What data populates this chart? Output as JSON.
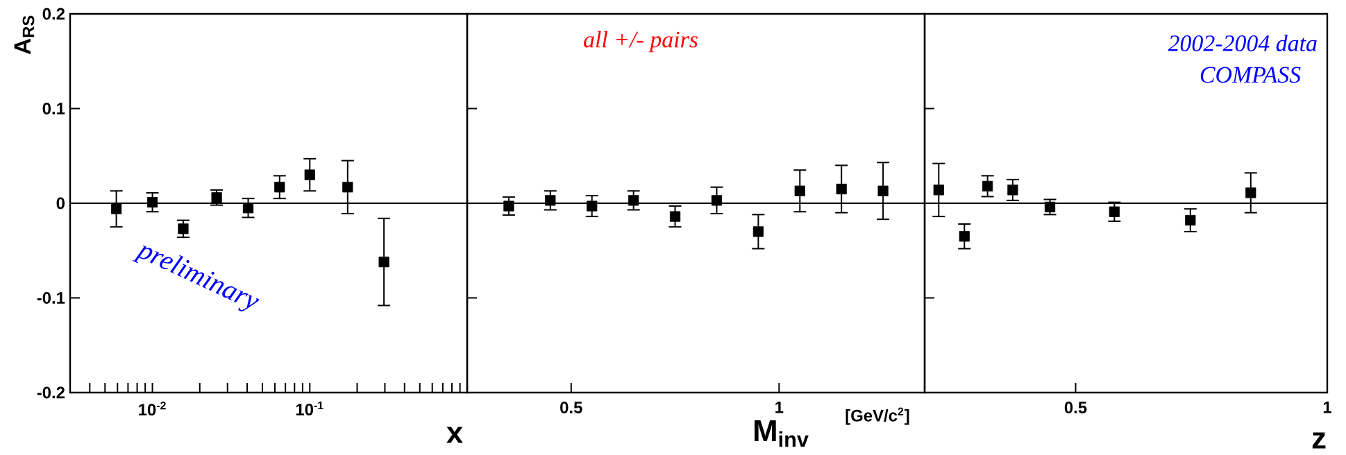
{
  "chart_data": [
    {
      "type": "scatter",
      "ylabel": "A$_{RS}$",
      "xlabel": "x",
      "log": "x",
      "marker": "square",
      "xlim": [
        0.003,
        1
      ],
      "ylim": [
        -0.2,
        0.2
      ],
      "xticks": [
        {
          "value": 0.004,
          "label": null
        },
        {
          "value": 0.005,
          "label": null
        },
        {
          "value": 0.006,
          "label": null
        },
        {
          "value": 0.007,
          "label": null
        },
        {
          "value": 0.008,
          "label": null
        },
        {
          "value": 0.009,
          "label": null
        },
        {
          "value": 0.01,
          "label": "10$^{-2}$"
        },
        {
          "value": 0.02,
          "label": null
        },
        {
          "value": 0.03,
          "label": null
        },
        {
          "value": 0.04,
          "label": null
        },
        {
          "value": 0.05,
          "label": null
        },
        {
          "value": 0.06,
          "label": null
        },
        {
          "value": 0.07,
          "label": null
        },
        {
          "value": 0.08,
          "label": null
        },
        {
          "value": 0.09,
          "label": null
        },
        {
          "value": 0.1,
          "label": "10$^{-1}$"
        },
        {
          "value": 0.2,
          "label": null
        },
        {
          "value": 0.3,
          "label": null
        },
        {
          "value": 0.4,
          "label": null
        },
        {
          "value": 0.5,
          "label": null
        },
        {
          "value": 0.6,
          "label": null
        },
        {
          "value": 0.7,
          "label": null
        },
        {
          "value": 0.8,
          "label": null
        },
        {
          "value": 0.9,
          "label": null
        }
      ],
      "yticks": [
        -0.2,
        -0.1,
        0,
        0.1,
        0.2
      ],
      "x": [
        0.0059,
        0.01,
        0.0157,
        0.0256,
        0.0406,
        0.0643,
        0.1,
        0.174,
        0.296
      ],
      "series": [
        {
          "color": "#000000",
          "values": [
            -0.006,
            0.001,
            -0.027,
            0.006,
            -0.005,
            0.017,
            0.03,
            0.017,
            -0.062
          ],
          "errors": [
            0.019,
            0.01,
            0.009,
            0.008,
            0.01,
            0.012,
            0.017,
            0.028,
            0.046
          ]
        }
      ],
      "ref_lines": [
        {
          "axis": "y",
          "value": 0
        }
      ],
      "annotations": [
        "preliminary"
      ]
    },
    {
      "type": "scatter",
      "xlabel": "M$_{inv}$",
      "marker": "square",
      "tick_labels": "x",
      "xlim": [
        0.25,
        1.35
      ],
      "ylim": [
        -0.2,
        0.2
      ],
      "xticks": [
        0.5,
        1
      ],
      "yticks": [
        -0.2,
        -0.1,
        0,
        0.1,
        0.2
      ],
      "x": [
        0.35,
        0.45,
        0.55,
        0.65,
        0.75,
        0.85,
        0.95,
        1.05,
        1.15,
        1.25
      ],
      "series": [
        {
          "color": "#000000",
          "values": [
            -0.003,
            0.003,
            -0.003,
            0.003,
            -0.014,
            0.003,
            -0.03,
            0.013,
            0.015,
            0.013
          ],
          "errors": [
            0.0095,
            0.01,
            0.011,
            0.01,
            0.011,
            0.014,
            0.018,
            0.022,
            0.025,
            0.03
          ]
        }
      ],
      "ref_lines": [
        {
          "axis": "y",
          "value": 0
        }
      ],
      "annotations": [
        "all +/- pairs",
        "[GeV/c$^{2}$]"
      ]
    },
    {
      "type": "scatter",
      "xlabel": "z",
      "marker": "square",
      "tick_labels": "x",
      "xlim": [
        0.2,
        1
      ],
      "ylim": [
        -0.2,
        0.2
      ],
      "xticks": [
        0.5,
        1
      ],
      "yticks": [
        -0.2,
        -0.1,
        0,
        0.1,
        0.2
      ],
      "x": [
        0.228,
        0.279,
        0.325,
        0.375,
        0.449,
        0.577,
        0.728,
        0.848
      ],
      "series": [
        {
          "color": "#000000",
          "values": [
            0.014,
            -0.035,
            0.018,
            0.014,
            -0.004,
            -0.009,
            -0.018,
            0.011
          ],
          "errors": [
            0.028,
            0.013,
            0.011,
            0.011,
            0.008,
            0.01,
            0.012,
            0.021
          ]
        }
      ],
      "ref_lines": [
        {
          "axis": "y",
          "value": 0
        }
      ],
      "annotations": [
        "2002-2004 data",
        "COMPASS"
      ]
    }
  ]
}
